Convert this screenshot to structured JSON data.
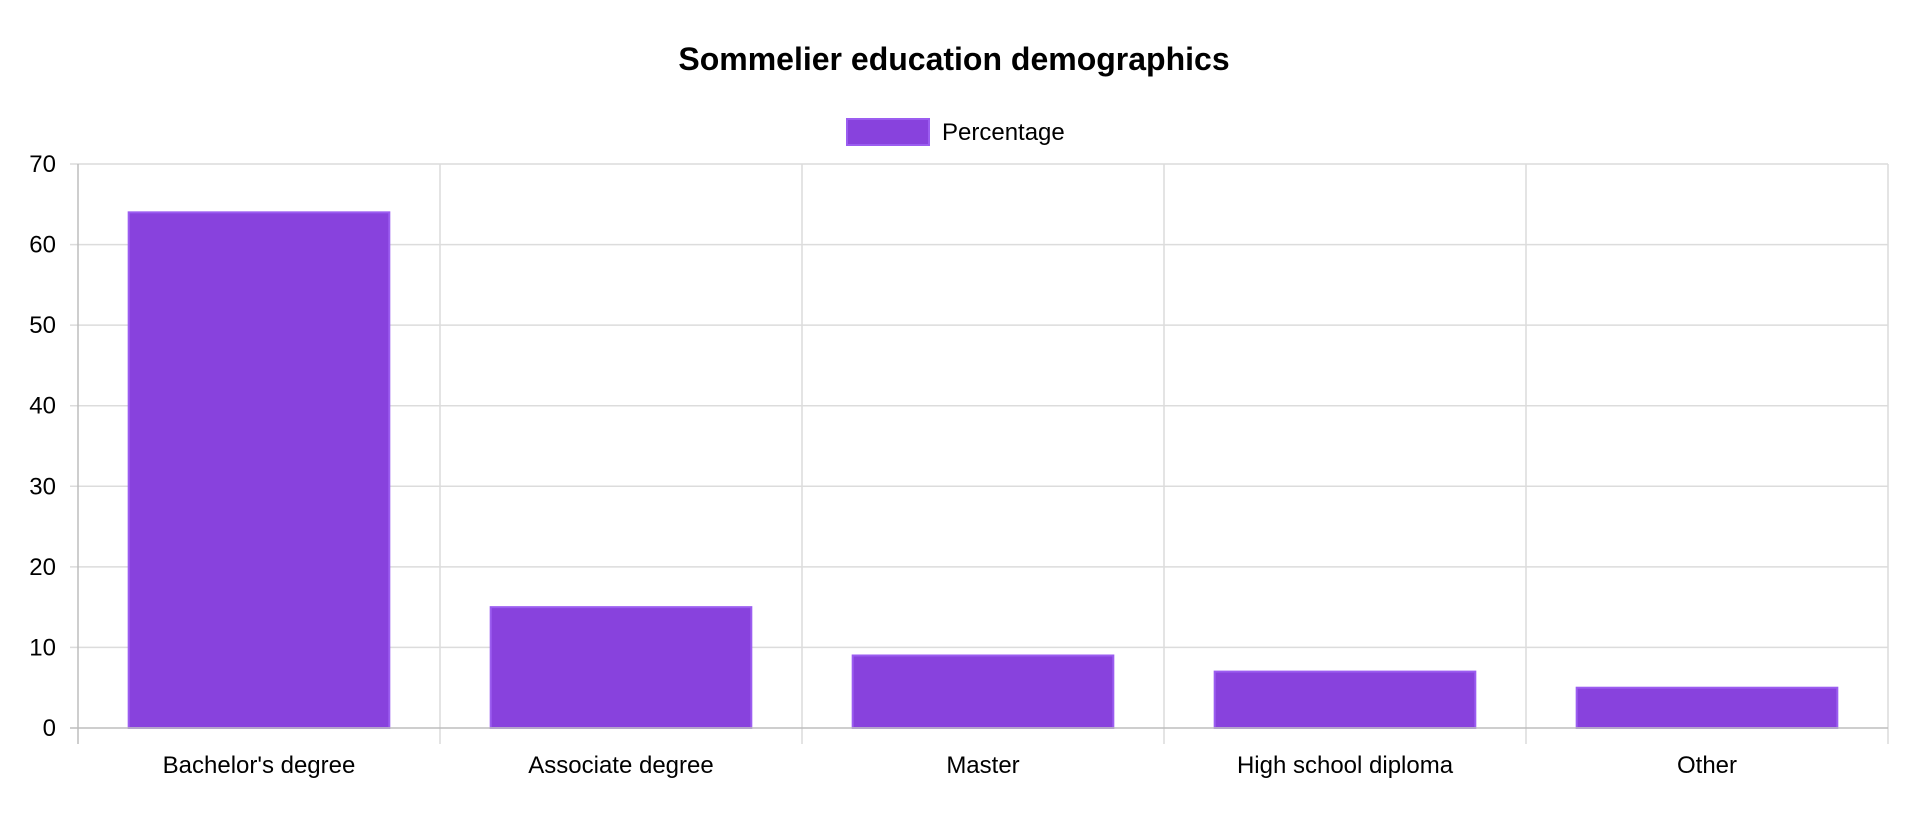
{
  "chart_data": {
    "type": "bar",
    "title": "Sommelier education demographics",
    "categories": [
      "Bachelor's degree",
      "Associate degree",
      "Master",
      "High school diploma",
      "Other"
    ],
    "series": [
      {
        "name": "Percentage",
        "values": [
          64,
          15,
          9,
          7,
          5
        ]
      }
    ],
    "xlabel": "",
    "ylabel": "",
    "ylim": [
      0,
      70
    ],
    "yticks": [
      "0",
      "10",
      "20",
      "30",
      "40",
      "50",
      "60",
      "70"
    ],
    "grid": true,
    "legend_position": "top-center",
    "colors": {
      "bar_fill": "#8842dd",
      "bar_border": "#9b5df0"
    }
  }
}
